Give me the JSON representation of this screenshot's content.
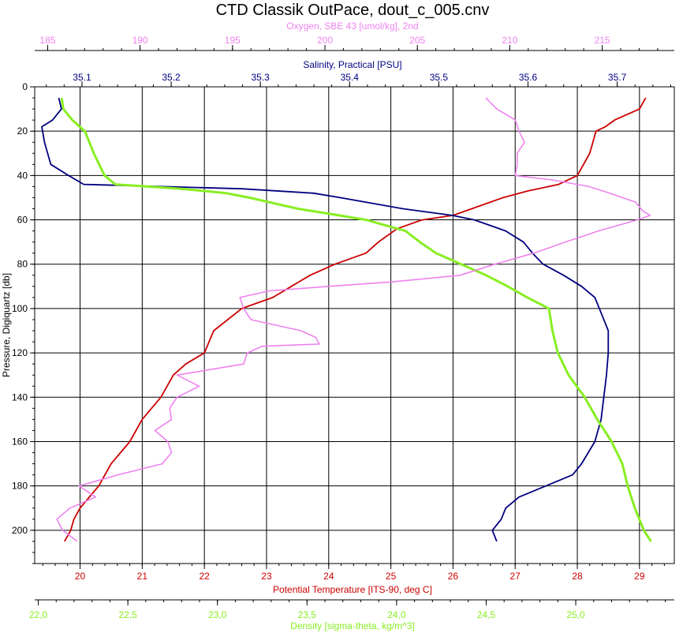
{
  "chart_data": {
    "type": "line",
    "title": "CTD Classik OutPace, dout_c_005.cnv",
    "grid": true,
    "y_axis": {
      "label": "Pressure, Digiquartz [db]",
      "range": [
        0,
        215
      ],
      "inverted": true,
      "ticks": [
        0,
        20,
        40,
        60,
        80,
        100,
        120,
        140,
        160,
        180,
        200
      ]
    },
    "x_axes": [
      {
        "id": "oxygen",
        "label": "Oxygen, SBE 43 [umol/kg], 2nd",
        "position": "top",
        "color": "#ee82ee",
        "range": [
          184.3,
          218.9
        ],
        "ticks": [
          "185",
          "190",
          "195",
          "200",
          "205",
          "210",
          "215"
        ]
      },
      {
        "id": "salinity",
        "label": "Salinity, Practical [PSU]",
        "position": "top",
        "color": "#000080",
        "range": [
          35.047,
          35.764
        ],
        "ticks": [
          "35.1",
          "35.2",
          "35.3",
          "35.4",
          "35.5",
          "35.6",
          "35.7"
        ]
      },
      {
        "id": "temperature",
        "label": "Potential Temperature [ITS-90, deg C]",
        "position": "bottom",
        "color": "#cc0000",
        "range": [
          19.27,
          29.56
        ],
        "ticks": [
          "20",
          "21",
          "22",
          "23",
          "24",
          "25",
          "26",
          "27",
          "28",
          "29"
        ]
      },
      {
        "id": "density",
        "label": "Density [sigma-theta, kg/m^3]",
        "position": "bottom",
        "color": "#88ee22",
        "range": [
          21.98,
          25.55
        ],
        "ticks": [
          "22,0",
          "22,5",
          "23,0",
          "23,5",
          "24,0",
          "24,5",
          "25,0"
        ]
      }
    ],
    "series": [
      {
        "axis": "temperature",
        "color": "#cc0000",
        "points": [
          [
            5,
            29.1
          ],
          [
            10,
            29.0
          ],
          [
            15,
            28.6
          ],
          [
            18,
            28.45
          ],
          [
            20,
            28.3
          ],
          [
            30,
            28.2
          ],
          [
            40,
            28.0
          ],
          [
            44,
            27.7
          ],
          [
            47,
            27.2
          ],
          [
            50,
            26.8
          ],
          [
            55,
            26.3
          ],
          [
            58,
            26.0
          ],
          [
            60,
            25.5
          ],
          [
            62,
            25.3
          ],
          [
            64,
            25.1
          ],
          [
            66,
            25.0
          ],
          [
            70,
            24.8
          ],
          [
            75,
            24.6
          ],
          [
            80,
            24.1
          ],
          [
            85,
            23.7
          ],
          [
            90,
            23.4
          ],
          [
            95,
            23.1
          ],
          [
            100,
            22.6
          ],
          [
            110,
            22.15
          ],
          [
            120,
            22.0
          ],
          [
            125,
            21.7
          ],
          [
            130,
            21.5
          ],
          [
            140,
            21.3
          ],
          [
            150,
            21.0
          ],
          [
            160,
            20.8
          ],
          [
            170,
            20.5
          ],
          [
            180,
            20.3
          ],
          [
            190,
            20.0
          ],
          [
            195,
            19.9
          ],
          [
            200,
            19.85
          ],
          [
            205,
            19.75
          ]
        ]
      },
      {
        "axis": "salinity",
        "color": "#000080",
        "points": [
          [
            5,
            35.074
          ],
          [
            10,
            35.077
          ],
          [
            15,
            35.067
          ],
          [
            18,
            35.055
          ],
          [
            25,
            35.058
          ],
          [
            35,
            35.065
          ],
          [
            40,
            35.085
          ],
          [
            44,
            35.102
          ],
          [
            46,
            35.28
          ],
          [
            48,
            35.36
          ],
          [
            50,
            35.39
          ],
          [
            55,
            35.46
          ],
          [
            58,
            35.515
          ],
          [
            60,
            35.54
          ],
          [
            65,
            35.575
          ],
          [
            70,
            35.595
          ],
          [
            75,
            35.605
          ],
          [
            80,
            35.617
          ],
          [
            85,
            35.64
          ],
          [
            90,
            35.66
          ],
          [
            95,
            35.675
          ],
          [
            100,
            35.68
          ],
          [
            110,
            35.69
          ],
          [
            120,
            35.69
          ],
          [
            130,
            35.688
          ],
          [
            140,
            35.685
          ],
          [
            150,
            35.682
          ],
          [
            160,
            35.675
          ],
          [
            170,
            35.66
          ],
          [
            175,
            35.65
          ],
          [
            180,
            35.62
          ],
          [
            185,
            35.59
          ],
          [
            190,
            35.575
          ],
          [
            195,
            35.57
          ],
          [
            200,
            35.56
          ],
          [
            205,
            35.565
          ]
        ]
      },
      {
        "axis": "density",
        "color": "#88ee22",
        "points": [
          [
            5,
            22.13
          ],
          [
            10,
            22.14
          ],
          [
            15,
            22.19
          ],
          [
            20,
            22.26
          ],
          [
            30,
            22.31
          ],
          [
            40,
            22.37
          ],
          [
            44,
            22.43
          ],
          [
            46,
            22.8
          ],
          [
            48,
            23.05
          ],
          [
            50,
            23.18
          ],
          [
            55,
            23.45
          ],
          [
            58,
            23.68
          ],
          [
            60,
            23.83
          ],
          [
            65,
            24.05
          ],
          [
            70,
            24.13
          ],
          [
            75,
            24.22
          ],
          [
            80,
            24.36
          ],
          [
            85,
            24.5
          ],
          [
            90,
            24.62
          ],
          [
            95,
            24.73
          ],
          [
            100,
            24.85
          ],
          [
            110,
            24.87
          ],
          [
            120,
            24.9
          ],
          [
            130,
            24.96
          ],
          [
            140,
            25.05
          ],
          [
            150,
            25.12
          ],
          [
            160,
            25.2
          ],
          [
            170,
            25.26
          ],
          [
            180,
            25.29
          ],
          [
            190,
            25.33
          ],
          [
            200,
            25.38
          ],
          [
            205,
            25.42
          ]
        ]
      },
      {
        "axis": "oxygen",
        "color": "#ee82ee",
        "points": [
          [
            5,
            208.7
          ],
          [
            10,
            209.3
          ],
          [
            15,
            210.3
          ],
          [
            20,
            210.5
          ],
          [
            25,
            210.8
          ],
          [
            30,
            210.4
          ],
          [
            35,
            210.4
          ],
          [
            40,
            210.3
          ],
          [
            42,
            212.3
          ],
          [
            45,
            214.3
          ],
          [
            48,
            215.4
          ],
          [
            52,
            216.8
          ],
          [
            56,
            217.2
          ],
          [
            58,
            217.6
          ],
          [
            60,
            216.9
          ],
          [
            65,
            214.8
          ],
          [
            70,
            213.0
          ],
          [
            75,
            211.3
          ],
          [
            80,
            209.2
          ],
          [
            85,
            207.3
          ],
          [
            88,
            203.6
          ],
          [
            90,
            200.2
          ],
          [
            92,
            197.0
          ],
          [
            95,
            195.4
          ],
          [
            100,
            195.6
          ],
          [
            105,
            196.0
          ],
          [
            110,
            198.7
          ],
          [
            113,
            199.5
          ],
          [
            116,
            199.7
          ],
          [
            117,
            196.6
          ],
          [
            120,
            195.8
          ],
          [
            125,
            195.6
          ],
          [
            130,
            192.0
          ],
          [
            135,
            193.2
          ],
          [
            140,
            192.0
          ],
          [
            145,
            191.6
          ],
          [
            150,
            191.7
          ],
          [
            155,
            190.8
          ],
          [
            160,
            191.5
          ],
          [
            165,
            191.7
          ],
          [
            170,
            191.2
          ],
          [
            175,
            188.8
          ],
          [
            180,
            186.7
          ],
          [
            185,
            187.6
          ],
          [
            190,
            186.2
          ],
          [
            195,
            185.5
          ],
          [
            200,
            185.8
          ],
          [
            205,
            186.6
          ]
        ]
      }
    ]
  }
}
